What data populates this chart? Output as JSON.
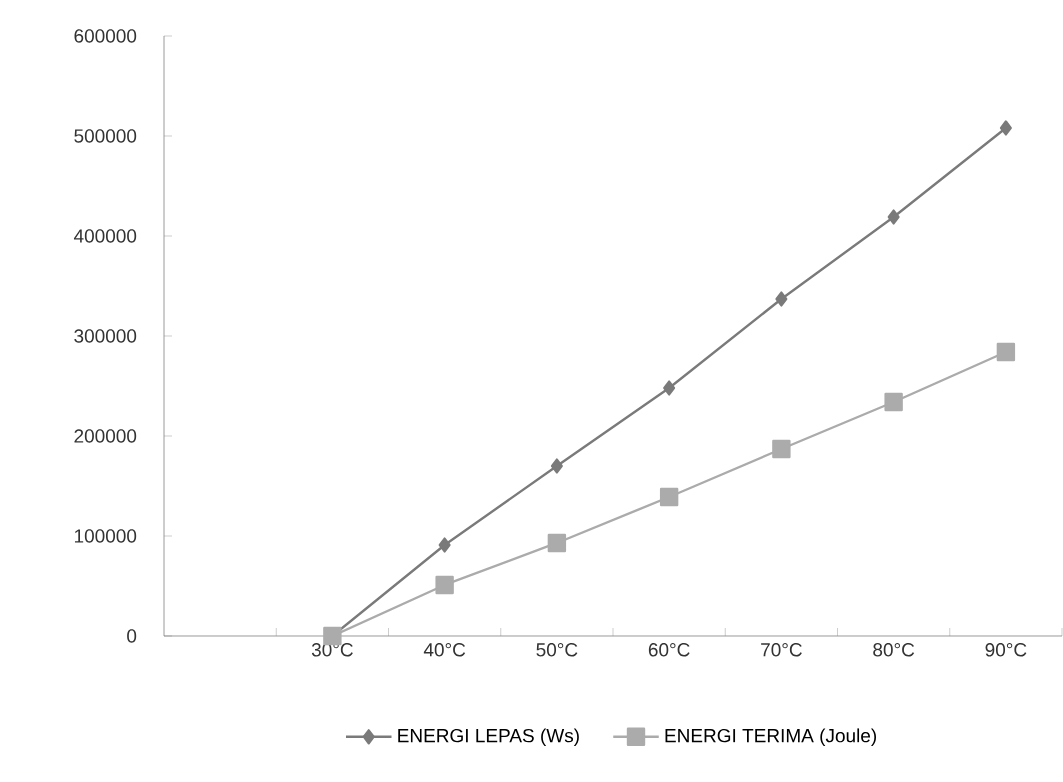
{
  "chart_data": {
    "type": "line",
    "categories": [
      null,
      "30°C",
      "40°C",
      "50°C",
      "60°C",
      "70°C",
      "80°C",
      "90°C"
    ],
    "series": [
      {
        "name": "ENERGI LEPAS (Ws)",
        "color": "#7a7a7a",
        "marker": "diamond",
        "values": [
          null,
          0,
          91000,
          170000,
          248000,
          337000,
          419000,
          508000
        ]
      },
      {
        "name": "ENERGI TERIMA (Joule)",
        "color": "#ababab",
        "marker": "square",
        "values": [
          null,
          0,
          51000,
          93000,
          139000,
          187000,
          234000,
          284000
        ]
      }
    ],
    "ylim": [
      0,
      600000
    ],
    "yticks": [
      0,
      100000,
      200000,
      300000,
      400000,
      500000,
      600000
    ],
    "grid": false,
    "legend": "bottom",
    "line_style": "solid"
  }
}
